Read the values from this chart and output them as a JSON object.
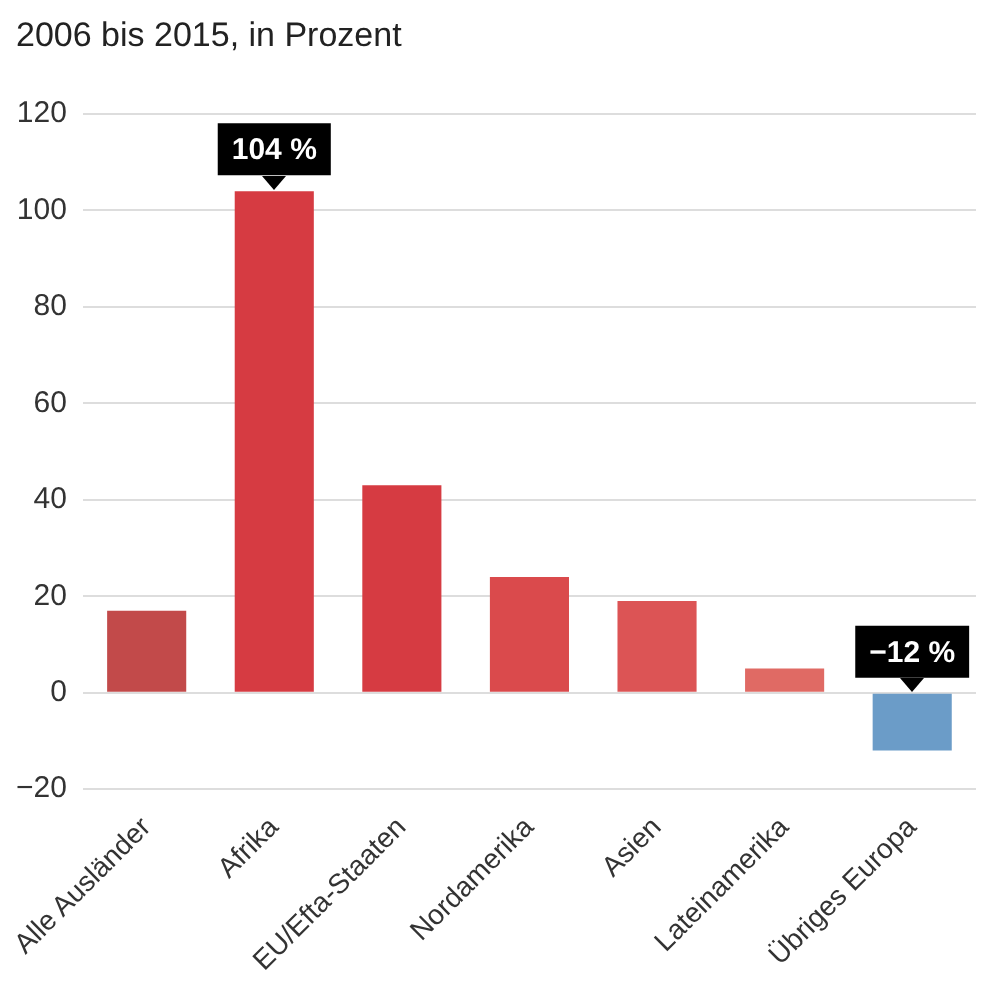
{
  "chart_data": {
    "type": "bar",
    "title": "2006 bis 2015, in Prozent",
    "categories": [
      "Alle Ausländer",
      "Afrika",
      "EU/Efta-Staaten",
      "Nordamerika",
      "Asien",
      "Lateinamerika",
      "Übriges Europa"
    ],
    "values": [
      17,
      104,
      43,
      24,
      19,
      5,
      -12
    ],
    "colors": [
      "#c24a4a",
      "#d63b42",
      "#d63b42",
      "#da4a4c",
      "#dc5455",
      "#e06a64",
      "#6b9cc8"
    ],
    "value_labels": [
      null,
      "104 %",
      null,
      null,
      null,
      null,
      "−12 %"
    ],
    "ylim": [
      -20,
      120
    ],
    "yticks": [
      -20,
      0,
      20,
      40,
      60,
      80,
      100,
      120
    ],
    "grid": "y"
  }
}
